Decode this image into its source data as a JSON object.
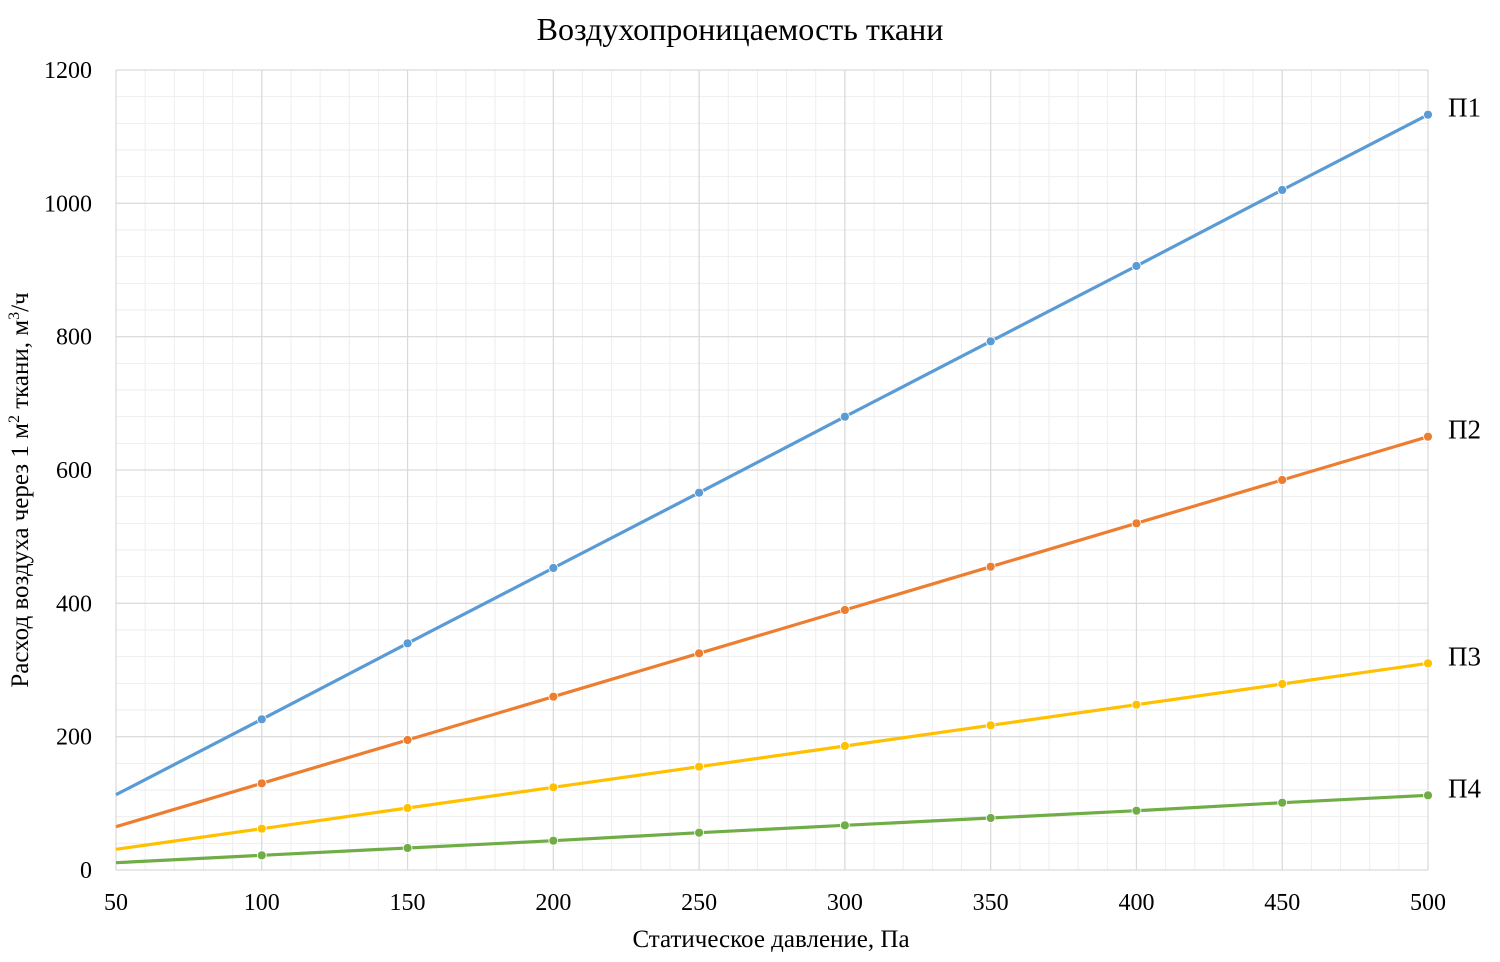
{
  "chart_data": {
    "type": "line",
    "title": "Воздухопроницаемость ткани",
    "xlabel": "Статическое давление, Па",
    "ylabel_main": "Расход воздуха через 1 м",
    "ylabel_sup": "2",
    "ylabel_mid": " ткани, м",
    "ylabel_sup2": "3",
    "ylabel_end": "/ч",
    "xlim": [
      50,
      500
    ],
    "ylim": [
      0,
      1200
    ],
    "x_ticks": [
      50,
      100,
      150,
      200,
      250,
      300,
      350,
      400,
      450,
      500
    ],
    "y_ticks": [
      0,
      200,
      400,
      600,
      800,
      1000,
      1200
    ],
    "grid": true,
    "legend": "none",
    "series_labels_position": "right-end",
    "series": [
      {
        "name": "П1",
        "color": "#5b9bd5",
        "x": [
          50,
          100,
          150,
          200,
          250,
          300,
          350,
          400,
          450,
          500
        ],
        "values": [
          113,
          226,
          340,
          453,
          566,
          680,
          793,
          906,
          1020,
          1133
        ]
      },
      {
        "name": "П2",
        "color": "#ed7d31",
        "x": [
          50,
          100,
          150,
          200,
          250,
          300,
          350,
          400,
          450,
          500
        ],
        "values": [
          65,
          130,
          195,
          260,
          325,
          390,
          455,
          520,
          585,
          650
        ]
      },
      {
        "name": "П3",
        "color": "#ffc000",
        "x": [
          50,
          100,
          150,
          200,
          250,
          300,
          350,
          400,
          450,
          500
        ],
        "values": [
          31,
          62,
          93,
          124,
          155,
          186,
          217,
          248,
          279,
          310
        ]
      },
      {
        "name": "П4",
        "color": "#70ad47",
        "x": [
          50,
          100,
          150,
          200,
          250,
          300,
          350,
          400,
          450,
          500
        ],
        "values": [
          11,
          22,
          33,
          44,
          56,
          67,
          78,
          89,
          101,
          112
        ]
      }
    ]
  }
}
